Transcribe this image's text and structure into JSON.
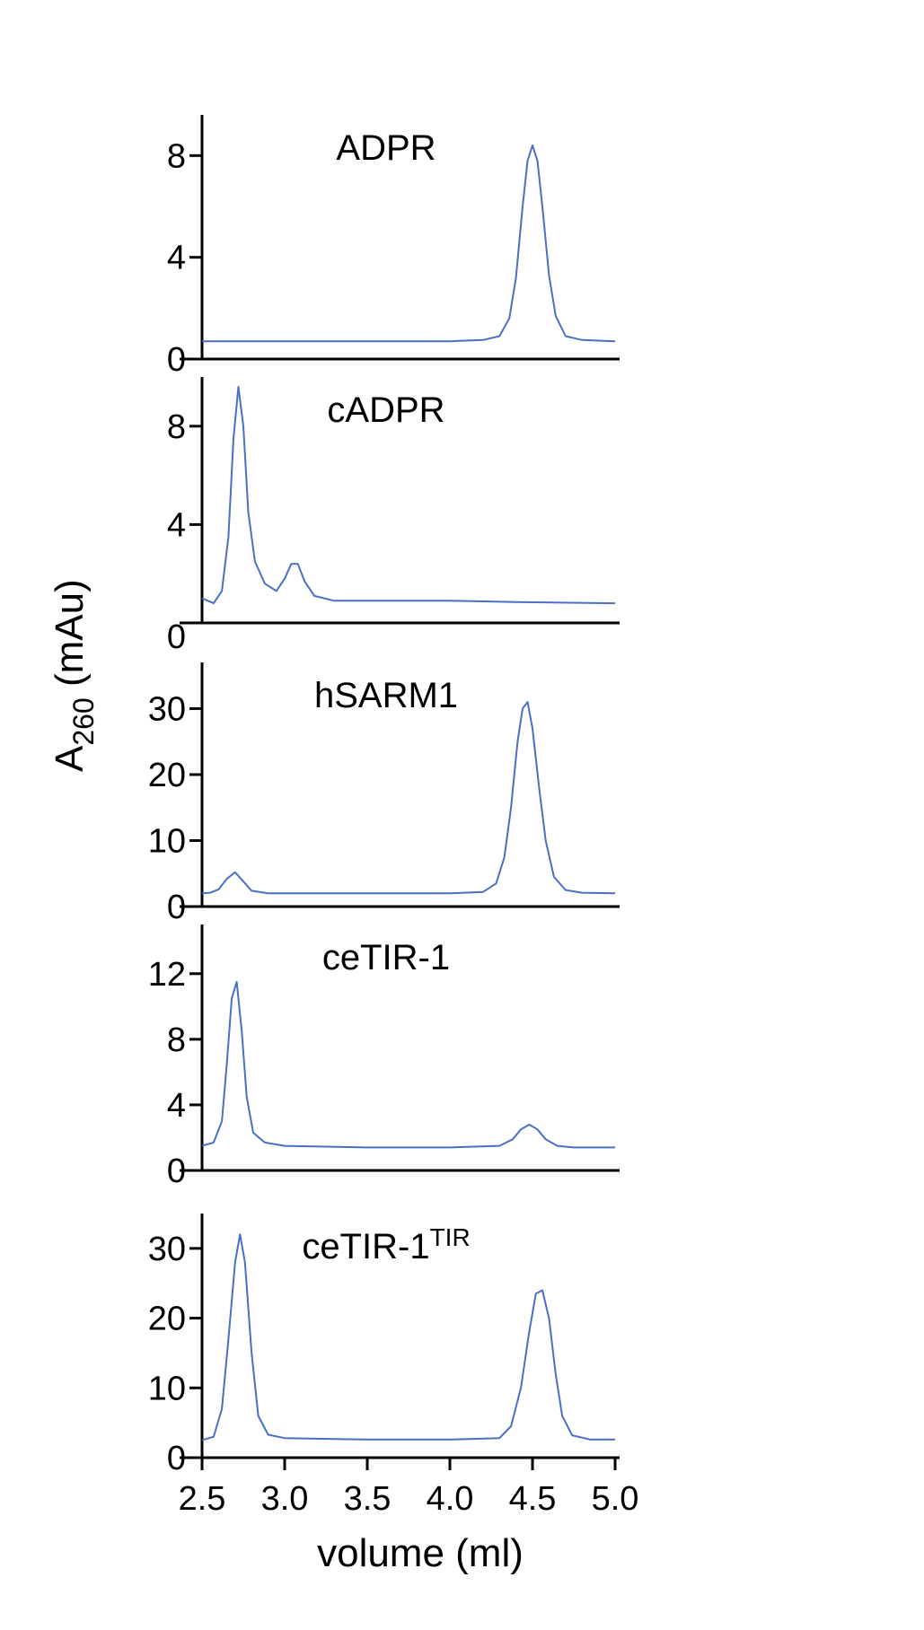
{
  "chart_data": {
    "type": "line",
    "ylabel": {
      "main": "A",
      "sub": "260",
      "unit": " (mAu)"
    },
    "xlabel": "volume (ml)",
    "x_ticks": [
      "2.5",
      "3.0",
      "3.5",
      "4.0",
      "4.5",
      "5.0"
    ],
    "xlim": [
      2.5,
      5.0
    ],
    "line_color": "#4a6fc4",
    "panels": [
      {
        "title": "ADPR",
        "title_sup": "",
        "ylim": [
          0,
          9.6
        ],
        "yticks": [
          0,
          4,
          8
        ],
        "series": [
          {
            "x": [
              2.5,
              3.0,
              3.5,
              4.0,
              4.2,
              4.3,
              4.36,
              4.4,
              4.44,
              4.47,
              4.5,
              4.53,
              4.56,
              4.6,
              4.64,
              4.7,
              4.8,
              5.0
            ],
            "y": [
              0.7,
              0.7,
              0.7,
              0.7,
              0.75,
              0.9,
              1.6,
              3.2,
              6.0,
              7.8,
              8.4,
              7.8,
              6.0,
              3.3,
              1.7,
              0.9,
              0.75,
              0.7
            ]
          }
        ]
      },
      {
        "title": "cADPR",
        "title_sup": "",
        "ylim": [
          0,
          10
        ],
        "yticks": [
          0,
          4,
          8
        ],
        "series": [
          {
            "x": [
              2.5,
              2.57,
              2.62,
              2.66,
              2.69,
              2.72,
              2.75,
              2.78,
              2.82,
              2.88,
              2.95,
              3.0,
              3.04,
              3.08,
              3.12,
              3.18,
              3.3,
              3.6,
              4.0,
              4.4,
              5.0
            ],
            "y": [
              1.0,
              0.8,
              1.3,
              3.5,
              7.5,
              9.6,
              8.0,
              4.5,
              2.5,
              1.6,
              1.3,
              1.8,
              2.4,
              2.4,
              1.7,
              1.1,
              0.9,
              0.9,
              0.9,
              0.85,
              0.8
            ]
          }
        ]
      },
      {
        "title": "hSARM1",
        "title_sup": "",
        "ylim": [
          0,
          37
        ],
        "yticks": [
          0,
          10,
          20,
          30
        ],
        "series": [
          {
            "x": [
              2.5,
              2.55,
              2.6,
              2.65,
              2.7,
              2.75,
              2.8,
              2.9,
              3.2,
              3.6,
              4.0,
              4.2,
              4.28,
              4.33,
              4.37,
              4.41,
              4.44,
              4.47,
              4.5,
              4.54,
              4.58,
              4.63,
              4.7,
              4.8,
              5.0
            ],
            "y": [
              2.0,
              2.1,
              2.6,
              4.2,
              5.2,
              3.8,
              2.4,
              2.0,
              2.0,
              2.0,
              2.0,
              2.2,
              3.5,
              7.5,
              15.0,
              25.0,
              30.0,
              31.0,
              27.0,
              18.0,
              10.0,
              4.5,
              2.5,
              2.1,
              2.0
            ]
          }
        ]
      },
      {
        "title": "ceTIR-1",
        "title_sup": "",
        "ylim": [
          0,
          15
        ],
        "yticks": [
          0,
          4,
          8,
          12
        ],
        "series": [
          {
            "x": [
              2.5,
              2.57,
              2.62,
              2.65,
              2.68,
              2.71,
              2.74,
              2.77,
              2.81,
              2.88,
              3.0,
              3.5,
              4.0,
              4.3,
              4.38,
              4.43,
              4.48,
              4.53,
              4.58,
              4.65,
              4.75,
              5.0
            ],
            "y": [
              1.5,
              1.7,
              3.0,
              6.5,
              10.5,
              11.5,
              8.5,
              4.5,
              2.3,
              1.7,
              1.5,
              1.4,
              1.4,
              1.5,
              1.9,
              2.5,
              2.8,
              2.5,
              1.9,
              1.5,
              1.4,
              1.4
            ]
          }
        ]
      },
      {
        "title": "ceTIR-1",
        "title_sup": "TIR",
        "ylim": [
          0,
          35
        ],
        "yticks": [
          0,
          10,
          20,
          30
        ],
        "series": [
          {
            "x": [
              2.5,
              2.57,
              2.62,
              2.66,
              2.7,
              2.73,
              2.76,
              2.8,
              2.84,
              2.9,
              3.0,
              3.5,
              4.0,
              4.3,
              4.37,
              4.43,
              4.48,
              4.52,
              4.56,
              4.6,
              4.64,
              4.68,
              4.74,
              4.85,
              5.0
            ],
            "y": [
              2.5,
              3.0,
              7.0,
              17.0,
              28.0,
              32.0,
              28.0,
              15.0,
              6.0,
              3.3,
              2.8,
              2.6,
              2.6,
              2.8,
              4.5,
              10.0,
              18.0,
              23.5,
              24.0,
              20.0,
              12.0,
              6.0,
              3.2,
              2.6,
              2.6
            ]
          }
        ]
      }
    ]
  }
}
